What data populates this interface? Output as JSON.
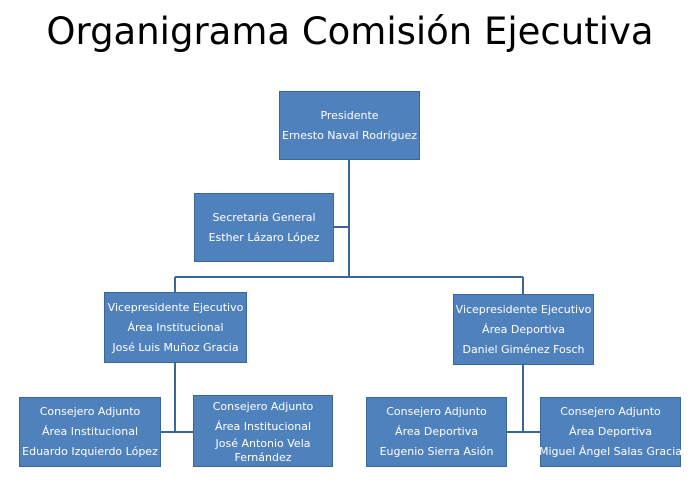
{
  "title": "Organigrama Comisión Ejecutiva",
  "colors": {
    "box_fill": "#4f81bd",
    "box_border": "#3a669a",
    "connector": "#3a669a",
    "text": "#ffffff"
  },
  "nodes": {
    "presidente": {
      "role": "Presidente",
      "name": "Ernesto Naval Rodríguez"
    },
    "secretaria": {
      "role": "Secretaria General",
      "name": "Esther Lázaro López"
    },
    "vp_institucional": {
      "role": "Vicepresidente  Ejecutivo",
      "area": "Área Institucional",
      "name": "José Luis Muñoz Gracia"
    },
    "vp_deportiva": {
      "role": "Vicepresidente Ejecutivo",
      "area": "Área Deportiva",
      "name": "Daniel Giménez Fosch"
    },
    "ca_inst_1": {
      "role": "Consejero Adjunto",
      "area": "Área Institucional",
      "name": "Eduardo Izquierdo López"
    },
    "ca_inst_2": {
      "role": "Consejero Adjunto",
      "area": "Área Institucional",
      "name_line1": "José Antonio Vela",
      "name_line2": "Fernández"
    },
    "ca_dep_1": {
      "role": "Consejero Adjunto",
      "area": "Área Deportiva",
      "name": "Eugenio Sierra Asión"
    },
    "ca_dep_2": {
      "role": "Consejero Adjunto",
      "area": "Área Deportiva",
      "name": "Miguel Ángel Salas Gracia"
    }
  }
}
